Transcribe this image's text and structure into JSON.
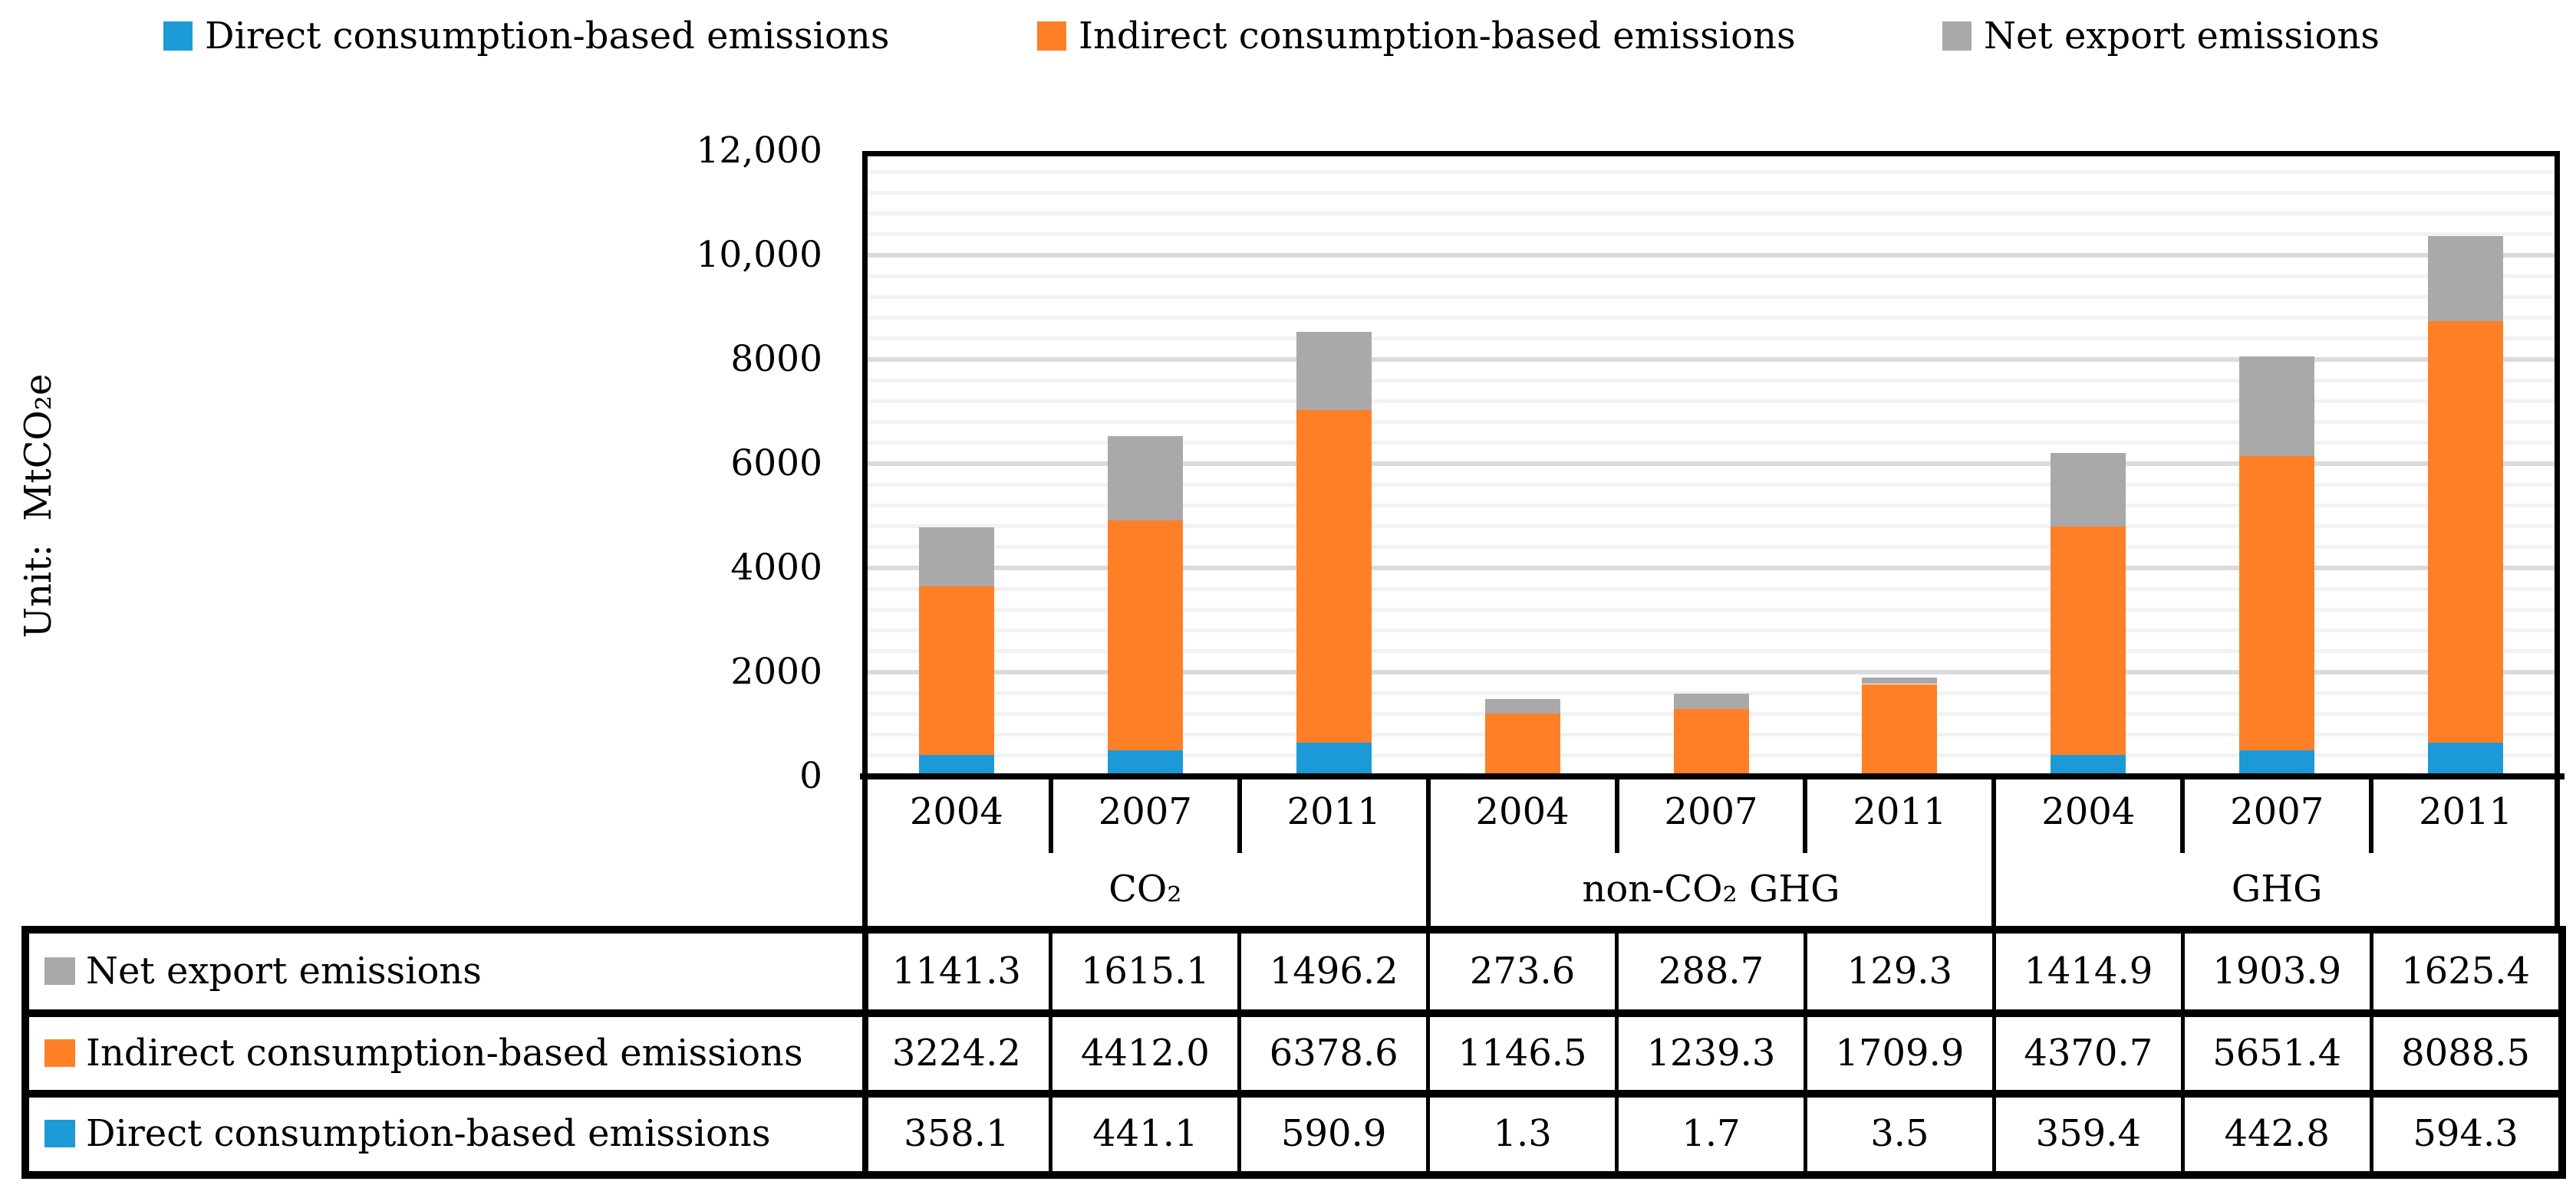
{
  "figure": {
    "unit_label": "Unit:  MtCO₂e",
    "background": "#FFFFFF"
  },
  "chart_data": {
    "type": "bar",
    "stacked": true,
    "title": "",
    "ylabel": "Unit:  MtCO₂e",
    "xlabel": "",
    "ylim": [
      0,
      12000
    ],
    "y_major_unit": 2000,
    "y_minor_unit": 400,
    "grid": "horizontal",
    "legend_position": "top",
    "y_ticks": [
      {
        "value": 0,
        "label": "0"
      },
      {
        "value": 2000,
        "label": "2000"
      },
      {
        "value": 4000,
        "label": "4000"
      },
      {
        "value": 6000,
        "label": "6000"
      },
      {
        "value": 8000,
        "label": "8000"
      },
      {
        "value": 10000,
        "label": "10,000"
      },
      {
        "value": 12000,
        "label": "12,000"
      }
    ],
    "groups": [
      {
        "label": "CO₂",
        "years": [
          "2004",
          "2007",
          "2011"
        ]
      },
      {
        "label": "non-CO₂ GHG",
        "years": [
          "2004",
          "2007",
          "2011"
        ]
      },
      {
        "label": "GHG",
        "years": [
          "2004",
          "2007",
          "2011"
        ]
      }
    ],
    "series": [
      {
        "key": "direct",
        "name": "Direct consumption-based emissions",
        "color": "#1C9AD7",
        "values": [
          358.1,
          441.1,
          590.9,
          1.3,
          1.7,
          3.5,
          359.4,
          442.8,
          594.3
        ]
      },
      {
        "key": "indirect",
        "name": "Indirect consumption-based emissions",
        "color": "#FF7F27",
        "values": [
          3224.2,
          4412.0,
          6378.6,
          1146.5,
          1239.3,
          1709.9,
          4370.7,
          5651.4,
          8088.5
        ]
      },
      {
        "key": "net-export",
        "name": "Net export emissions",
        "color": "#A9A9A9",
        "values": [
          1141.3,
          1615.1,
          1496.2,
          273.6,
          288.7,
          129.3,
          1414.9,
          1903.9,
          1625.4
        ]
      }
    ],
    "data_table": {
      "rows": [
        {
          "key": "net-export",
          "label": "Net export emissions",
          "color": "#A9A9A9",
          "values": [
            "1141.3",
            "1615.1",
            "1496.2",
            "273.6",
            "288.7",
            "129.3",
            "1414.9",
            "1903.9",
            "1625.4"
          ]
        },
        {
          "key": "indirect",
          "label": "Indirect consumption-based emissions",
          "color": "#FF7F27",
          "values": [
            "3224.2",
            "4412.0",
            "6378.6",
            "1146.5",
            "1239.3",
            "1709.9",
            "4370.7",
            "5651.4",
            "8088.5"
          ]
        },
        {
          "key": "direct",
          "label": "Direct consumption-based emissions",
          "color": "#1C9AD7",
          "values": [
            "358.1",
            "441.1",
            "590.9",
            "1.3",
            "1.7",
            "3.5",
            "359.4",
            "442.8",
            "594.3"
          ]
        }
      ]
    }
  },
  "colors": {
    "blue": "#1C9AD7",
    "orange": "#FF7F27",
    "gray": "#A9A9A9",
    "grid_minor": "#F2F2F2",
    "grid_major": "#DBDBDB",
    "line_black": "#000000",
    "background": "#FFFFFF"
  }
}
